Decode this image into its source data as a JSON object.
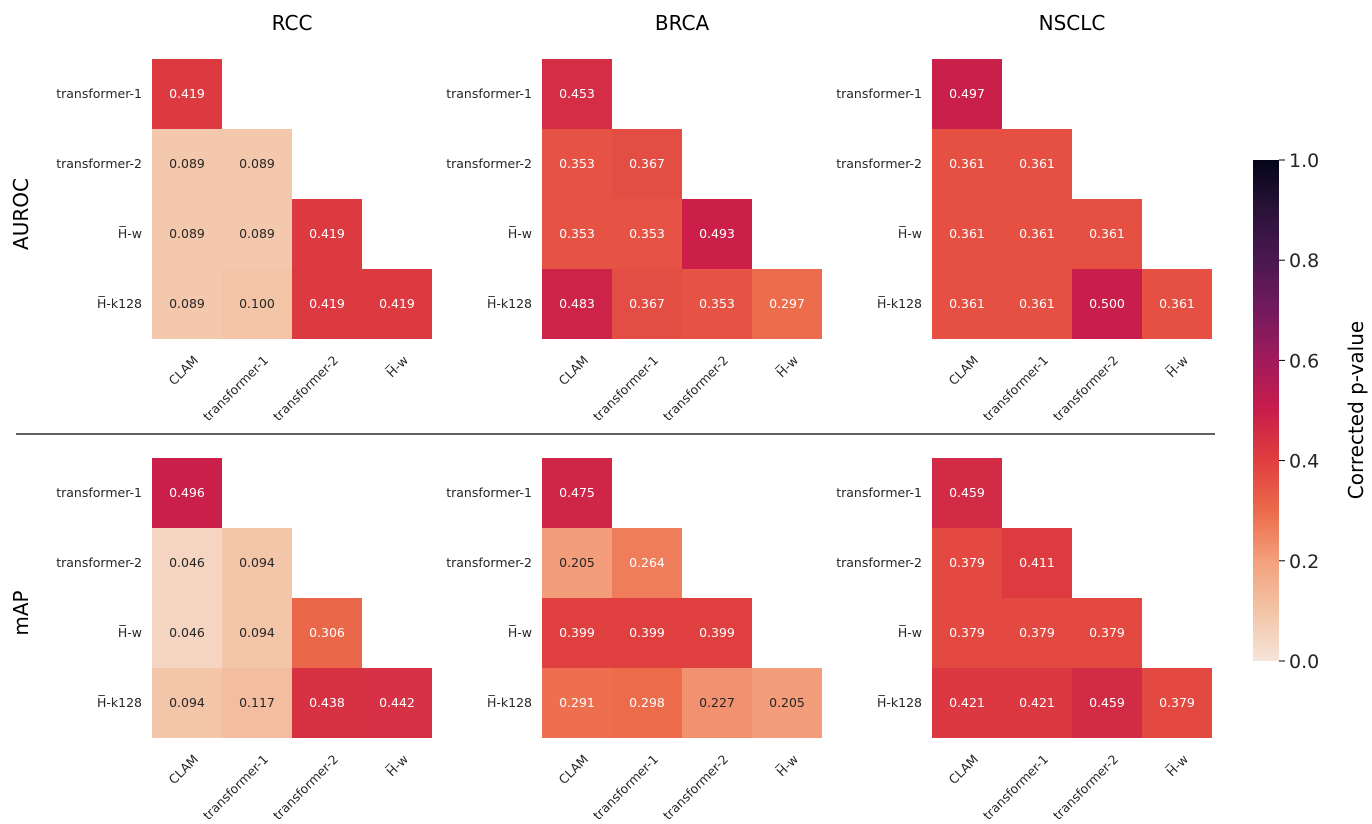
{
  "chart_data": {
    "type": "heatmap",
    "row_labels": [
      "transformer-1",
      "transformer-2",
      "H̅-w",
      "H̅-k128"
    ],
    "col_labels": [
      "CLAM",
      "transformer-1",
      "transformer-2",
      "H̅-w"
    ],
    "colorbar": {
      "label": "Corrected p-value",
      "range": [
        0.0,
        1.0
      ],
      "ticks": [
        "0.0",
        "0.2",
        "0.4",
        "0.6",
        "0.8",
        "1.0"
      ]
    },
    "panels": [
      {
        "metric": "AUROC",
        "dataset": "RCC",
        "values": [
          [
            0.419
          ],
          [
            0.089,
            0.089
          ],
          [
            0.089,
            0.089,
            0.419
          ],
          [
            0.089,
            0.1,
            0.419,
            0.419
          ]
        ]
      },
      {
        "metric": "AUROC",
        "dataset": "BRCA",
        "values": [
          [
            0.453
          ],
          [
            0.353,
            0.367
          ],
          [
            0.353,
            0.353,
            0.493
          ],
          [
            0.483,
            0.367,
            0.353,
            0.297
          ]
        ]
      },
      {
        "metric": "AUROC",
        "dataset": "NSCLC",
        "values": [
          [
            0.497
          ],
          [
            0.361,
            0.361
          ],
          [
            0.361,
            0.361,
            0.361
          ],
          [
            0.361,
            0.361,
            0.5,
            0.361
          ]
        ]
      },
      {
        "metric": "mAP",
        "dataset": "RCC",
        "values": [
          [
            0.496
          ],
          [
            0.046,
            0.094
          ],
          [
            0.046,
            0.094,
            0.306
          ],
          [
            0.094,
            0.117,
            0.438,
            0.442
          ]
        ]
      },
      {
        "metric": "mAP",
        "dataset": "BRCA",
        "values": [
          [
            0.475
          ],
          [
            0.205,
            0.264
          ],
          [
            0.399,
            0.399,
            0.399
          ],
          [
            0.291,
            0.298,
            0.227,
            0.205
          ]
        ]
      },
      {
        "metric": "mAP",
        "dataset": "NSCLC",
        "values": [
          [
            0.459
          ],
          [
            0.379,
            0.411
          ],
          [
            0.379,
            0.379,
            0.379
          ],
          [
            0.421,
            0.421,
            0.459,
            0.379
          ]
        ]
      }
    ],
    "column_titles": [
      "RCC",
      "BRCA",
      "NSCLC"
    ],
    "row_titles": [
      "AUROC",
      "mAP"
    ]
  }
}
